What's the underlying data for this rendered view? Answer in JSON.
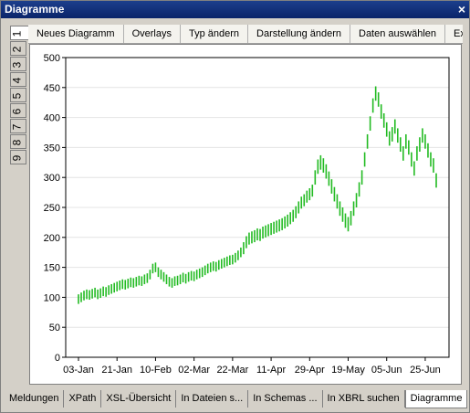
{
  "window": {
    "title": "Diagramme",
    "close": "×"
  },
  "toolbar": [
    "Neues Diagramm",
    "Overlays",
    "Typ ändern",
    "Darstellung ändern",
    "Daten auswählen",
    "Expo"
  ],
  "side_tabs": [
    "1",
    "2",
    "3",
    "4",
    "5",
    "6",
    "7",
    "8",
    "9"
  ],
  "bottom_tabs": [
    "Meldungen",
    "XPath",
    "XSL-Übersicht",
    "In Dateien s...",
    "In Schemas ...",
    "In XBRL suchen",
    "Diagramme"
  ],
  "chart_data": {
    "type": "hilo",
    "color": "#22bb22",
    "grid": true,
    "ylim": [
      0,
      500
    ],
    "yticks": [
      0,
      50,
      100,
      150,
      200,
      250,
      300,
      350,
      400,
      450,
      500
    ],
    "categories": [
      "03-Jan",
      null,
      null,
      null,
      null,
      null,
      null,
      null,
      null,
      null,
      null,
      null,
      null,
      null,
      "21-Jan",
      null,
      null,
      null,
      null,
      null,
      null,
      null,
      null,
      null,
      null,
      null,
      null,
      null,
      "10-Feb",
      null,
      null,
      null,
      null,
      null,
      null,
      null,
      null,
      null,
      null,
      null,
      null,
      null,
      "02-Mar",
      null,
      null,
      null,
      null,
      null,
      null,
      null,
      null,
      null,
      null,
      null,
      null,
      null,
      "22-Mar",
      null,
      null,
      null,
      null,
      null,
      null,
      null,
      null,
      null,
      null,
      null,
      null,
      null,
      "11-Apr",
      null,
      null,
      null,
      null,
      null,
      null,
      null,
      null,
      null,
      null,
      null,
      null,
      null,
      "29-Apr",
      null,
      null,
      null,
      null,
      null,
      null,
      null,
      null,
      null,
      null,
      null,
      null,
      null,
      "19-May",
      null,
      null,
      null,
      null,
      null,
      null,
      null,
      null,
      null,
      null,
      null,
      null,
      null,
      "05-Jun",
      null,
      null,
      null,
      null,
      null,
      null,
      null,
      null,
      null,
      null,
      null,
      null,
      null,
      "25-Jun",
      null,
      null,
      null,
      null
    ],
    "low": [
      89,
      92,
      95,
      97,
      96,
      98,
      100,
      97,
      99,
      102,
      101,
      104,
      106,
      108,
      110,
      112,
      114,
      113,
      115,
      117,
      116,
      118,
      120,
      119,
      122,
      124,
      130,
      140,
      142,
      134,
      130,
      126,
      122,
      118,
      116,
      119,
      120,
      122,
      125,
      123,
      126,
      128,
      127,
      130,
      132,
      134,
      137,
      140,
      142,
      144,
      143,
      146,
      148,
      150,
      152,
      154,
      155,
      158,
      162,
      167,
      172,
      182,
      188,
      190,
      192,
      195,
      194,
      198,
      200,
      202,
      204,
      206,
      208,
      210,
      212,
      215,
      218,
      222,
      226,
      232,
      240,
      248,
      252,
      258,
      262,
      268,
      288,
      306,
      313,
      308,
      298,
      286,
      273,
      260,
      248,
      236,
      226,
      216,
      210,
      220,
      236,
      250,
      268,
      288,
      318,
      348,
      378,
      408,
      428,
      418,
      398,
      383,
      368,
      353,
      360,
      373,
      358,
      343,
      328,
      348,
      338,
      318,
      303,
      328,
      343,
      358,
      348,
      333,
      318,
      308,
      283
    ],
    "high": [
      105,
      108,
      111,
      113,
      112,
      114,
      116,
      113,
      115,
      118,
      117,
      120,
      122,
      124,
      126,
      128,
      130,
      129,
      131,
      133,
      132,
      134,
      136,
      135,
      138,
      140,
      146,
      156,
      158,
      150,
      146,
      142,
      138,
      134,
      132,
      135,
      136,
      138,
      141,
      139,
      142,
      144,
      143,
      146,
      148,
      150,
      153,
      156,
      158,
      160,
      159,
      162,
      164,
      166,
      168,
      170,
      171,
      174,
      178,
      183,
      192,
      202,
      208,
      210,
      212,
      215,
      214,
      218,
      220,
      222,
      224,
      226,
      228,
      230,
      232,
      235,
      238,
      242,
      246,
      252,
      260,
      268,
      272,
      278,
      282,
      288,
      312,
      330,
      337,
      332,
      322,
      310,
      297,
      284,
      272,
      260,
      250,
      240,
      234,
      244,
      260,
      274,
      292,
      312,
      342,
      372,
      402,
      432,
      452,
      442,
      422,
      407,
      392,
      377,
      384,
      397,
      382,
      367,
      352,
      372,
      362,
      342,
      327,
      352,
      367,
      382,
      372,
      357,
      342,
      332,
      307
    ]
  }
}
